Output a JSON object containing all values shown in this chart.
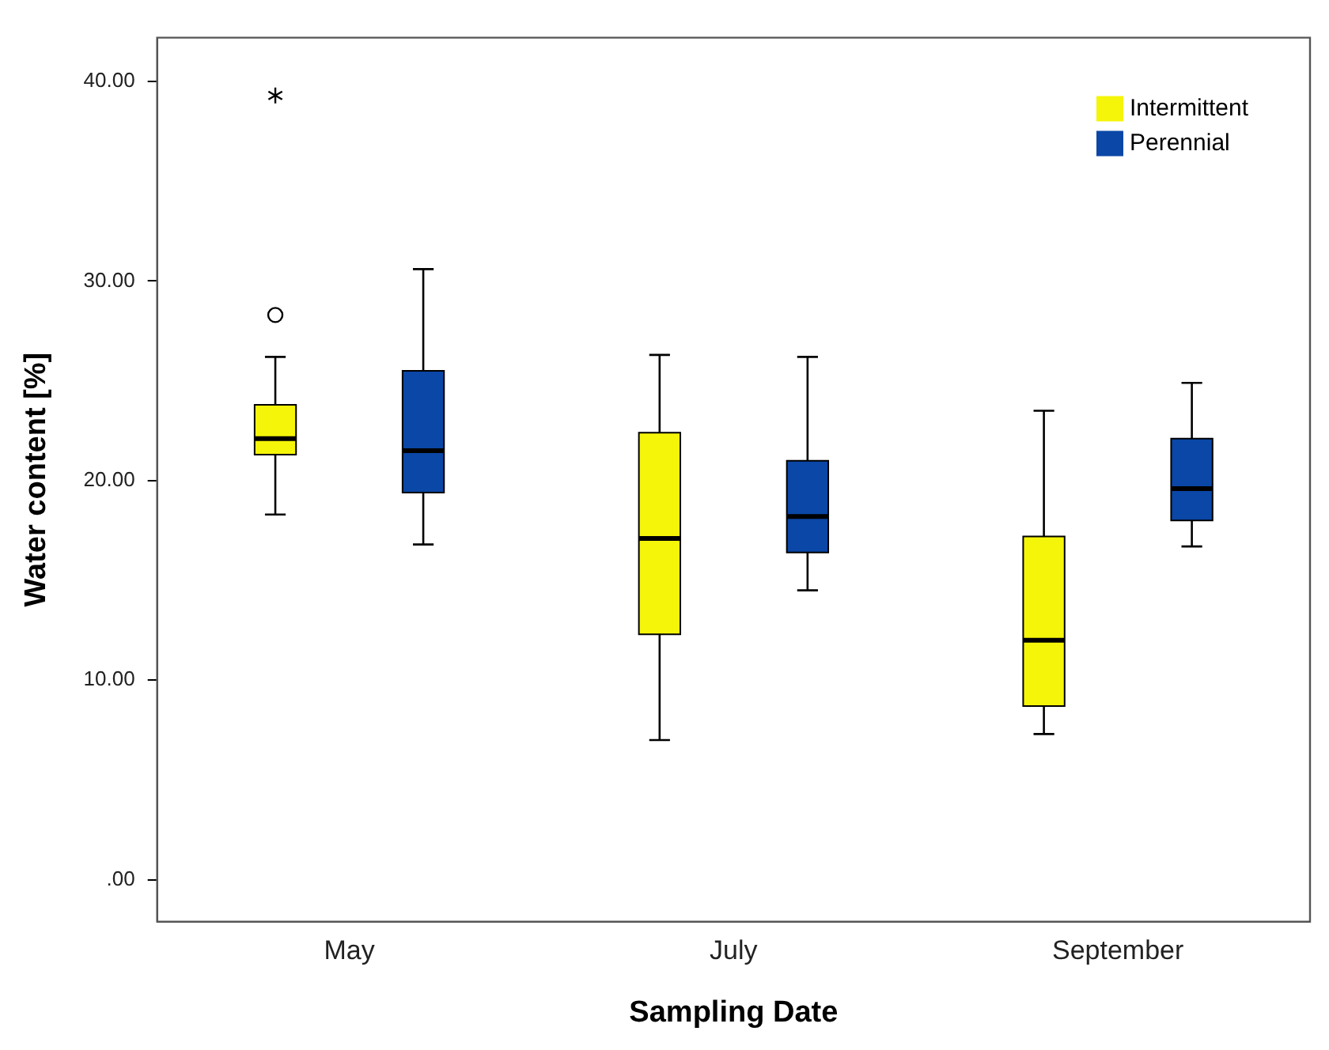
{
  "chart_data": {
    "type": "box",
    "xlabel": "Sampling Date",
    "ylabel": "Water content [%]",
    "categories": [
      "May",
      "July",
      "September"
    ],
    "ylim": [
      -2.1,
      42.2
    ],
    "yticks": [
      {
        "value": 0,
        "label": ".00"
      },
      {
        "value": 10,
        "label": "10.00"
      },
      {
        "value": 20,
        "label": "20.00"
      },
      {
        "value": 30,
        "label": "30.00"
      },
      {
        "value": 40,
        "label": "40.00"
      }
    ],
    "grid": false,
    "legend": "top right",
    "series": [
      {
        "name": "Intermittent",
        "color": "#f5f50a",
        "boxes": [
          {
            "low": 18.3,
            "q1": 21.3,
            "median": 22.1,
            "q3": 23.8,
            "high": 26.2,
            "outliers": [
              28.3,
              39.3
            ]
          },
          {
            "low": 7.0,
            "q1": 12.3,
            "median": 17.1,
            "q3": 22.4,
            "high": 26.3
          },
          {
            "low": 7.3,
            "q1": 8.7,
            "median": 12.0,
            "q3": 17.2,
            "high": 23.5
          }
        ]
      },
      {
        "name": "Perennial",
        "color": "#0a47a6",
        "boxes": [
          {
            "low": 16.8,
            "q1": 19.4,
            "median": 21.5,
            "q3": 25.5,
            "high": 30.6
          },
          {
            "low": 14.5,
            "q1": 16.4,
            "median": 18.2,
            "q3": 21.0,
            "high": 26.2
          },
          {
            "low": 16.7,
            "q1": 18.0,
            "median": 19.6,
            "q3": 22.1,
            "high": 24.9
          }
        ]
      }
    ]
  }
}
